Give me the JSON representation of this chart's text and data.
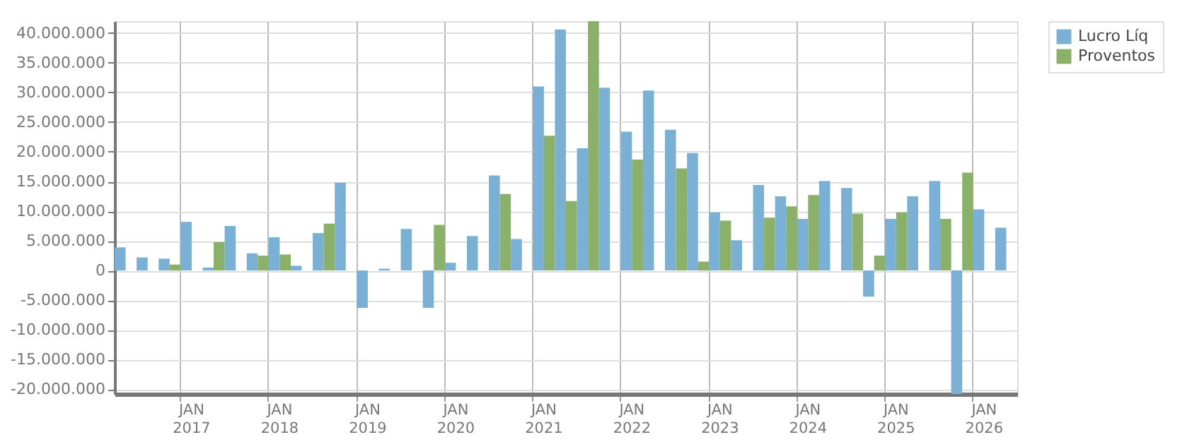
{
  "chart_data": {
    "type": "bar",
    "categories": [
      null,
      null,
      null,
      "JAN\n2017",
      null,
      null,
      null,
      "JAN\n2018",
      null,
      null,
      null,
      "JAN\n2019",
      null,
      null,
      null,
      "JAN\n2020",
      null,
      null,
      null,
      "JAN\n2021",
      null,
      null,
      null,
      "JAN\n2022",
      null,
      null,
      null,
      "JAN\n2023",
      null,
      null,
      null,
      "JAN\n2024",
      null,
      null,
      null,
      "JAN\n2025",
      null,
      null,
      null,
      "JAN\n2026",
      null
    ],
    "series": [
      {
        "name": "Lucro Líq",
        "color": "#7ab0d4",
        "values": [
          3900000,
          2200000,
          2000000,
          8200000,
          500000,
          7500000,
          2900000,
          5600000,
          800000,
          6300000,
          14800000,
          -6300000,
          300000,
          7000000,
          -6300000,
          1300000,
          5800000,
          16000000,
          5300000,
          31000000,
          40600000,
          20600000,
          30800000,
          23400000,
          30300000,
          23700000,
          19800000,
          9800000,
          5100000,
          14400000,
          12500000,
          8700000,
          15100000,
          13900000,
          -4400000,
          8700000,
          12500000,
          15100000,
          -20800000,
          10300000,
          7200000
        ]
      },
      {
        "name": "Proventos",
        "color": "#8ab06a",
        "values": [
          0,
          0,
          1000000,
          0,
          4800000,
          0,
          2500000,
          2700000,
          0,
          7900000,
          0,
          0,
          0,
          0,
          7700000,
          0,
          0,
          12900000,
          0,
          22700000,
          11700000,
          42000000,
          0,
          18700000,
          0,
          17200000,
          1500000,
          8400000,
          0,
          8900000,
          10800000,
          12700000,
          0,
          9600000,
          2500000,
          9800000,
          0,
          8700000,
          16500000,
          0,
          0
        ]
      }
    ],
    "ylim": [
      -20800000,
      42000000
    ],
    "yticks": [
      {
        "value": -20000000,
        "label": "-20.000.000"
      },
      {
        "value": -15000000,
        "label": "-15.000.000"
      },
      {
        "value": -10000000,
        "label": "-10.000.000"
      },
      {
        "value": -5000000,
        "label": "-5.000.000"
      },
      {
        "value": 0,
        "label": "0"
      },
      {
        "value": 5000000,
        "label": "5.000.000"
      },
      {
        "value": 10000000,
        "label": "10.000.000"
      },
      {
        "value": 15000000,
        "label": "15.000.000"
      },
      {
        "value": 20000000,
        "label": "20.000.000"
      },
      {
        "value": 25000000,
        "label": "25.000.000"
      },
      {
        "value": 30000000,
        "label": "30.000.000"
      },
      {
        "value": 35000000,
        "label": "35.000.000"
      },
      {
        "value": 40000000,
        "label": "40.000.000"
      }
    ],
    "grid": true,
    "legend": "top right"
  }
}
